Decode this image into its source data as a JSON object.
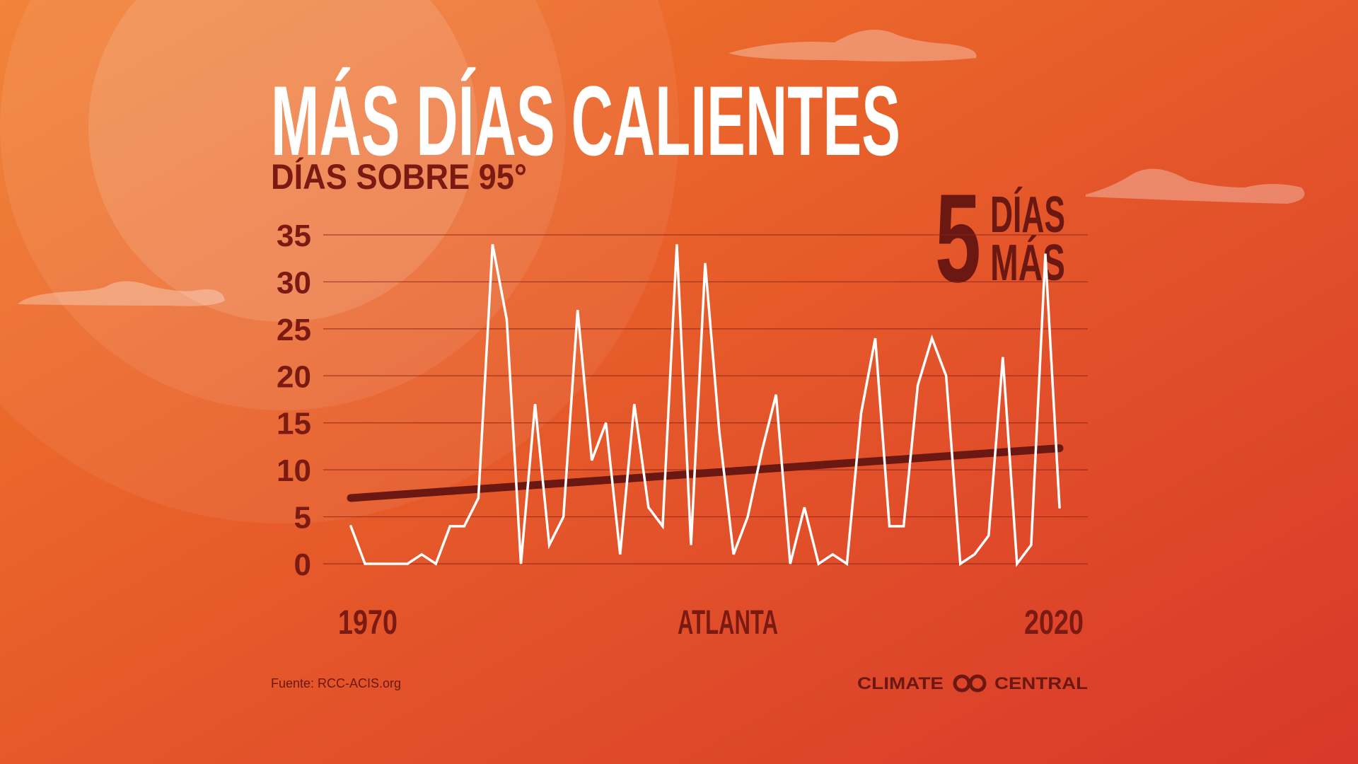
{
  "chart_data": {
    "type": "line",
    "title": "MÁS DÍAS CALIENTES",
    "subtitle": "DÍAS SOBRE 95°",
    "annotation": {
      "number": "5",
      "lines": [
        "DÍAS",
        "MÁS"
      ]
    },
    "location_label": "ATLANTA",
    "source": "Fuente: RCC-ACIS.org",
    "brand": [
      "CLIMATE",
      "CENTRAL"
    ],
    "x": [
      1970,
      1971,
      1972,
      1973,
      1974,
      1975,
      1976,
      1977,
      1978,
      1979,
      1980,
      1981,
      1982,
      1983,
      1984,
      1985,
      1986,
      1987,
      1988,
      1989,
      1990,
      1991,
      1992,
      1993,
      1994,
      1995,
      1996,
      1997,
      1998,
      1999,
      2000,
      2001,
      2002,
      2003,
      2004,
      2005,
      2006,
      2007,
      2008,
      2009,
      2010,
      2011,
      2012,
      2013,
      2014,
      2015,
      2016,
      2017,
      2018,
      2019,
      2020
    ],
    "series": [
      {
        "color": "#ffffff",
        "values": [
          4,
          0,
          0,
          0,
          0,
          1,
          0,
          4,
          4,
          7,
          34,
          26,
          0,
          17,
          2,
          5,
          27,
          11,
          15,
          1,
          17,
          6,
          4,
          34,
          2,
          32,
          14,
          1,
          5,
          12,
          18,
          0,
          6,
          0,
          1,
          0,
          16,
          24,
          4,
          4,
          19,
          24,
          20,
          0,
          1,
          3,
          22,
          0,
          2,
          33,
          6
        ]
      }
    ],
    "trend": {
      "color": "#6b1712",
      "x": [
        1970,
        2020
      ],
      "values": [
        7,
        12.3
      ]
    },
    "xlim": [
      1970,
      2020
    ],
    "xticks": [
      1970,
      2020
    ],
    "ylim": [
      0,
      35
    ],
    "yticks": [
      0,
      5,
      10,
      15,
      20,
      25,
      30,
      35
    ],
    "grid": true
  }
}
